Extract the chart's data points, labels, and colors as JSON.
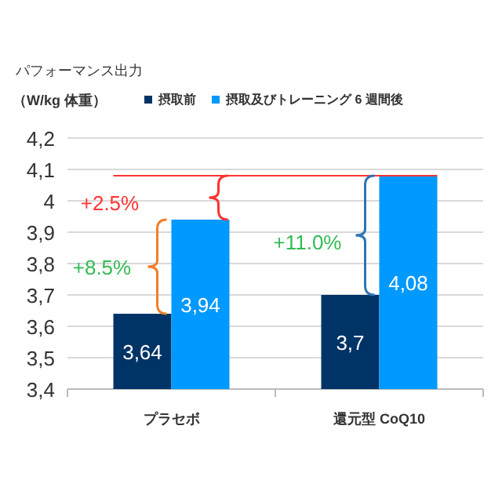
{
  "chart_data": {
    "type": "bar",
    "title": "パフォーマンス出力",
    "ylabel": "（W/kg 体重）",
    "categories": [
      "プラセボ",
      "還元型 CoQ10"
    ],
    "series": [
      {
        "name": "摂取前",
        "color": "#003366",
        "values": [
          3.64,
          3.7
        ],
        "value_labels": [
          "3,64",
          "3,7"
        ]
      },
      {
        "name": "摂取及びトレーニング 6 週間後",
        "color": "#0099ff",
        "values": [
          3.94,
          4.08
        ],
        "value_labels": [
          "3,94",
          "4,08"
        ]
      }
    ],
    "ylim": [
      3.4,
      4.2
    ],
    "yticks": [
      {
        "value": 3.4,
        "label": "3,4"
      },
      {
        "value": 3.5,
        "label": "3,5"
      },
      {
        "value": 3.6,
        "label": "3,6"
      },
      {
        "value": 3.7,
        "label": "3,7"
      },
      {
        "value": 3.8,
        "label": "3,8"
      },
      {
        "value": 3.9,
        "label": "3,9"
      },
      {
        "value": 4.0,
        "label": "4"
      },
      {
        "value": 4.1,
        "label": "4,1"
      },
      {
        "value": 4.2,
        "label": "4,2"
      }
    ],
    "ref_lines": [
      {
        "axis": "y",
        "value": 4.08,
        "color": "#ff3333"
      }
    ],
    "annotations": [
      "+2.5%",
      "+8.5%",
      "+11.0%"
    ],
    "grid": "y",
    "legend": "top"
  }
}
